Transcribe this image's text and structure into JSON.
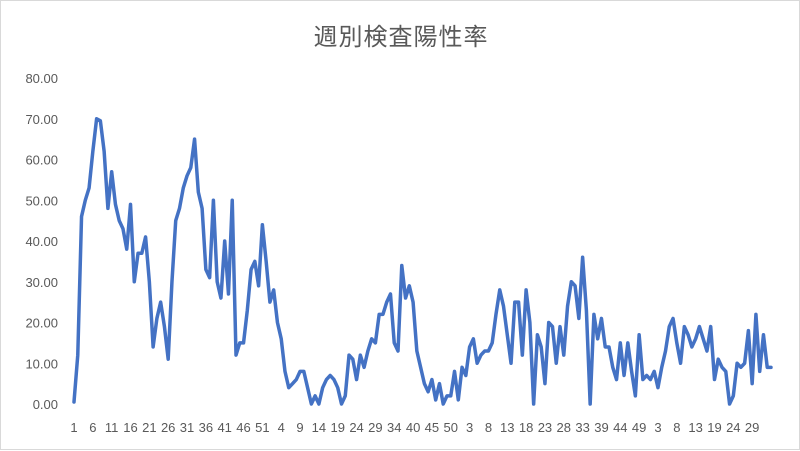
{
  "chart_data": {
    "type": "line",
    "title": "週別検査陽性率",
    "xlabel": "",
    "ylabel": "",
    "ylim": [
      0,
      80
    ],
    "yticks": [
      "0.00",
      "10.00",
      "20.00",
      "30.00",
      "40.00",
      "50.00",
      "60.00",
      "70.00",
      "80.00"
    ],
    "x_tick_labels": [
      "1",
      "6",
      "11",
      "16",
      "21",
      "26",
      "31",
      "36",
      "41",
      "46",
      "51",
      "4",
      "9",
      "14",
      "19",
      "24",
      "29",
      "34",
      "40",
      "45",
      "50",
      "3",
      "8",
      "13",
      "18",
      "23",
      "28",
      "33",
      "39",
      "44",
      "49",
      "3",
      "8",
      "13",
      "19",
      "24",
      "29"
    ],
    "x_tick_positions": [
      1,
      6,
      11,
      16,
      21,
      26,
      31,
      36,
      41,
      46,
      51,
      56,
      61,
      66,
      71,
      76,
      81,
      86,
      91,
      96,
      101,
      106,
      111,
      116,
      121,
      126,
      131,
      136,
      141,
      146,
      151,
      156,
      161,
      166,
      171,
      176,
      181
    ],
    "grid": false,
    "legend": "none",
    "color": "#4472c4",
    "series": [
      {
        "values": [
          0.5,
          12,
          46,
          50,
          53,
          62,
          70,
          69.5,
          62,
          48,
          57,
          49,
          45,
          43,
          38,
          49,
          30,
          37,
          37,
          41,
          30,
          14,
          21,
          25,
          19,
          11,
          30,
          45,
          48,
          53,
          56,
          58,
          65,
          52,
          48,
          33,
          31,
          50,
          30,
          26,
          40,
          27,
          50,
          12,
          15,
          15,
          23,
          33,
          35,
          29,
          44,
          35,
          25,
          28,
          20,
          16,
          8,
          4,
          5,
          6,
          8,
          8,
          4,
          0,
          2,
          0,
          4,
          6,
          7,
          6,
          4,
          0,
          2,
          12,
          11,
          6,
          12,
          9,
          13,
          16,
          15,
          22,
          22,
          25,
          27,
          15,
          13,
          34,
          26,
          29,
          25,
          13,
          9,
          5,
          3,
          6,
          1,
          5,
          0,
          2,
          2,
          8,
          1,
          9,
          7,
          14,
          16,
          10,
          12,
          13,
          13,
          15,
          22,
          28,
          24,
          17,
          10,
          25,
          25,
          12,
          28,
          20,
          0,
          17,
          14,
          5,
          20,
          19,
          10,
          19,
          12,
          24,
          30,
          29,
          21,
          36,
          23,
          0,
          22,
          16,
          21,
          14,
          14,
          9,
          6,
          15,
          7,
          15,
          8,
          2,
          17,
          6,
          7,
          6,
          8,
          4,
          9,
          13,
          19,
          21,
          15,
          10,
          19,
          17,
          14,
          16,
          19,
          16,
          13,
          19,
          6,
          11,
          9,
          8,
          0,
          2,
          10,
          9,
          10,
          18,
          5,
          22,
          8,
          17,
          9,
          9
        ]
      }
    ]
  }
}
